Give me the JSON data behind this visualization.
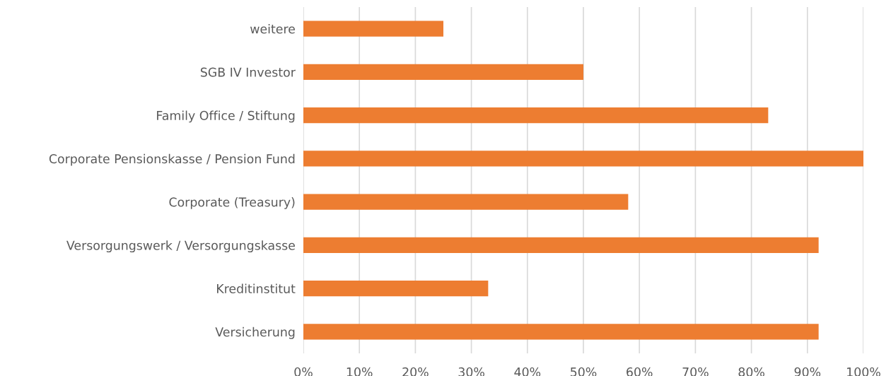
{
  "chart_data": {
    "type": "bar",
    "orientation": "horizontal",
    "categories": [
      "weitere",
      "SGB IV Investor",
      "Family Office / Stiftung",
      "Corporate Pensionskasse / Pension Fund",
      "Corporate (Treasury)",
      "Versorgungswerk / Versorgungskasse",
      "Kreditinstitut",
      "Versicherung"
    ],
    "values": [
      25,
      50,
      83,
      100,
      58,
      92,
      33,
      92
    ],
    "color": "#ed7d31",
    "xlim": [
      0,
      100
    ],
    "xticks": [
      {
        "value": 0,
        "label": "0%"
      },
      {
        "value": 10,
        "label": "10%"
      },
      {
        "value": 20,
        "label": "20%"
      },
      {
        "value": 30,
        "label": "30%"
      },
      {
        "value": 40,
        "label": "40%"
      },
      {
        "value": 50,
        "label": "50%"
      },
      {
        "value": 60,
        "label": "60%"
      },
      {
        "value": 70,
        "label": "70%"
      },
      {
        "value": 80,
        "label": "80%"
      },
      {
        "value": 90,
        "label": "90%"
      },
      {
        "value": 100,
        "label": "100%"
      }
    ],
    "grid": "x"
  }
}
